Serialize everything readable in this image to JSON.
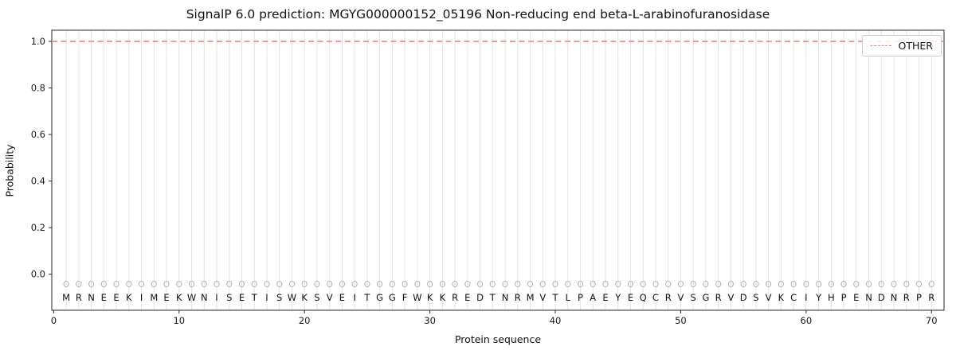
{
  "chart_data": {
    "type": "line",
    "title": "SignalP 6.0 prediction: MGYG000000152_05196 Non-reducing end beta-L-arabinofuranosidase",
    "xlabel": "Protein sequence",
    "ylabel": "Probability",
    "xlim": [
      -0.15,
      71
    ],
    "ylim": [
      -0.155,
      1.048
    ],
    "xticks": [
      0,
      10,
      20,
      30,
      40,
      50,
      60,
      70
    ],
    "yticks": [
      "0.0",
      "0.2",
      "0.4",
      "0.6",
      "0.8",
      "1.0"
    ],
    "grid": "vertical-line-per-residue",
    "series": [
      {
        "name": "OTHER",
        "color": "#f87f7f",
        "linestyle": "dashed",
        "x_start": -0.15,
        "x_end": 71,
        "y_constant": 1.0
      }
    ],
    "sequence": "MRNEEKIMEKWNISETISWKSVEITGGFWKKREDTNRMVTLPAEYEQCRVSGRVDSVKCIYHPENDNRPR",
    "per_position_prediction": "OOOOOOOOOOOOOOOOOOOOOOOOOOOOOOOOOOOOOOOOOOOOOOOOOOOOOOOOOOOOOOOOOOOOOO",
    "sequence_row_y": -0.1,
    "marker_row_y": -0.045,
    "marker_color": "#b5b5b5",
    "sequence_color": "#111111",
    "grid_color": "#e2e2e2",
    "spine_color": "#262626",
    "legend": {
      "position": "upper right",
      "entries": [
        {
          "label": "OTHER",
          "color": "#f87f7f",
          "linestyle": "dashed"
        }
      ]
    }
  }
}
